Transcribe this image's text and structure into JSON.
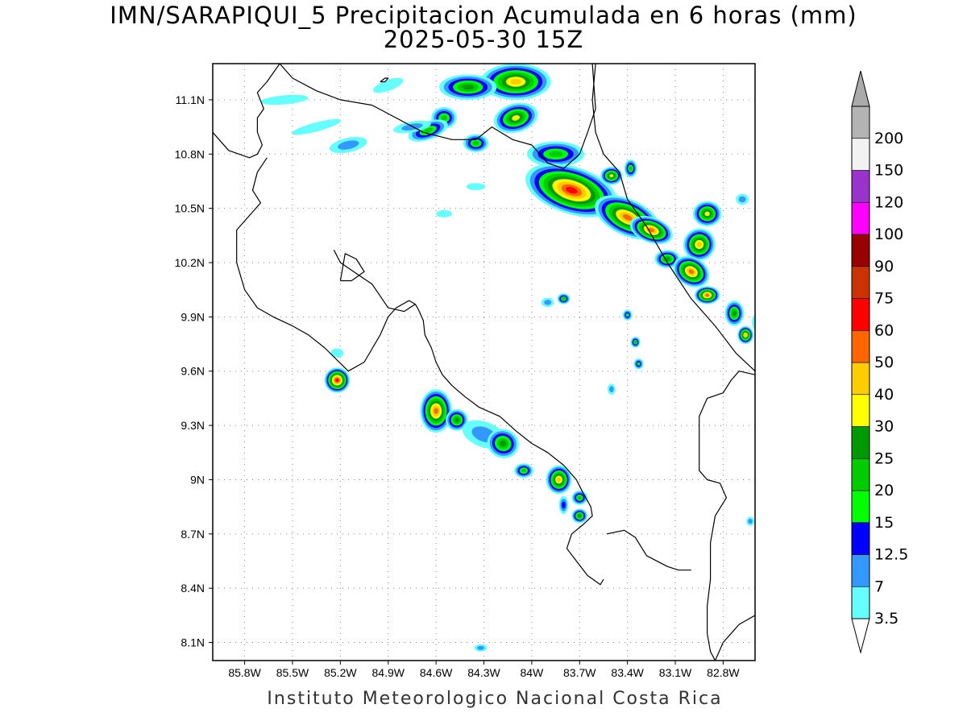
{
  "title": {
    "line1": "IMN/SARAPIQUI_5 Precipitacion Acumulada en 6 horas (mm)",
    "line2": "2025-05-30 15Z"
  },
  "footer": "Instituto Meteorologico Nacional Costa Rica",
  "map": {
    "lon_range": [
      -86.0,
      -82.6
    ],
    "lat_range": [
      8.0,
      11.3
    ],
    "lat_ticks": [
      {
        "value": 11.1,
        "label": "11.1N"
      },
      {
        "value": 10.8,
        "label": "10.8N"
      },
      {
        "value": 10.5,
        "label": "10.5N"
      },
      {
        "value": 10.2,
        "label": "10.2N"
      },
      {
        "value": 9.9,
        "label": "9.9N"
      },
      {
        "value": 9.6,
        "label": "9.6N"
      },
      {
        "value": 9.3,
        "label": "9.3N"
      },
      {
        "value": 9.0,
        "label": "9N"
      },
      {
        "value": 8.7,
        "label": "8.7N"
      },
      {
        "value": 8.4,
        "label": "8.4N"
      },
      {
        "value": 8.1,
        "label": "8.1N"
      }
    ],
    "lon_ticks": [
      {
        "value": -85.8,
        "label": "85.8W"
      },
      {
        "value": -85.5,
        "label": "85.5W"
      },
      {
        "value": -85.2,
        "label": "85.2W"
      },
      {
        "value": -84.9,
        "label": "84.9W"
      },
      {
        "value": -84.6,
        "label": "84.6W"
      },
      {
        "value": -84.3,
        "label": "84.3W"
      },
      {
        "value": -84.0,
        "label": "84W"
      },
      {
        "value": -83.7,
        "label": "83.7W"
      },
      {
        "value": -83.4,
        "label": "83.4W"
      },
      {
        "value": -83.1,
        "label": "83.1W"
      },
      {
        "value": -82.8,
        "label": "82.8W"
      }
    ],
    "grid": true,
    "grid_style": "dotted"
  },
  "colorbar": {
    "levels": [
      {
        "label": "3.5",
        "color": "#66ffff"
      },
      {
        "label": "7",
        "color": "#3399ff"
      },
      {
        "label": "12.5",
        "color": "#0000ff"
      },
      {
        "label": "15",
        "color": "#00ff00"
      },
      {
        "label": "20",
        "color": "#00cc00"
      },
      {
        "label": "25",
        "color": "#009900"
      },
      {
        "label": "30",
        "color": "#ffff00"
      },
      {
        "label": "40",
        "color": "#ffcc00"
      },
      {
        "label": "50",
        "color": "#ff6600"
      },
      {
        "label": "60",
        "color": "#ff0000"
      },
      {
        "label": "75",
        "color": "#cc3300"
      },
      {
        "label": "90",
        "color": "#990000"
      },
      {
        "label": "100",
        "color": "#ff00ff"
      },
      {
        "label": "120",
        "color": "#9933cc"
      },
      {
        "label": "150",
        "color": "#f2f2f2"
      },
      {
        "label": "200",
        "color": "#b3b3b3"
      }
    ],
    "below_color": "#ffffff",
    "above_color": "#aaaaaa",
    "units": "mm"
  },
  "precip_cells": [
    {
      "lon": -84.1,
      "lat": 11.2,
      "rx": 0.22,
      "ry": 0.1,
      "rot": 0,
      "max": 45
    },
    {
      "lon": -84.4,
      "lat": 11.17,
      "rx": 0.18,
      "ry": 0.07,
      "rot": 0,
      "max": 28
    },
    {
      "lon": -84.1,
      "lat": 11.0,
      "rx": 0.14,
      "ry": 0.08,
      "rot": -15,
      "max": 35
    },
    {
      "lon": -84.55,
      "lat": 11.0,
      "rx": 0.08,
      "ry": 0.06,
      "rot": 0,
      "max": 24
    },
    {
      "lon": -84.65,
      "lat": 10.93,
      "rx": 0.13,
      "ry": 0.05,
      "rot": -20,
      "max": 22
    },
    {
      "lon": -84.35,
      "lat": 10.86,
      "rx": 0.08,
      "ry": 0.05,
      "rot": 0,
      "max": 22
    },
    {
      "lon": -83.85,
      "lat": 10.8,
      "rx": 0.18,
      "ry": 0.07,
      "rot": 0,
      "max": 24
    },
    {
      "lon": -83.75,
      "lat": 10.6,
      "rx": 0.3,
      "ry": 0.13,
      "rot": 18,
      "max": 62
    },
    {
      "lon": -83.4,
      "lat": 10.45,
      "rx": 0.22,
      "ry": 0.1,
      "rot": 25,
      "max": 55
    },
    {
      "lon": -83.25,
      "lat": 10.38,
      "rx": 0.14,
      "ry": 0.07,
      "rot": 20,
      "max": 50
    },
    {
      "lon": -83.5,
      "lat": 10.68,
      "rx": 0.07,
      "ry": 0.05,
      "rot": 0,
      "max": 32
    },
    {
      "lon": -83.38,
      "lat": 10.72,
      "rx": 0.04,
      "ry": 0.05,
      "rot": 0,
      "max": 22
    },
    {
      "lon": -83.15,
      "lat": 10.22,
      "rx": 0.08,
      "ry": 0.05,
      "rot": 0,
      "max": 25
    },
    {
      "lon": -82.95,
      "lat": 10.3,
      "rx": 0.1,
      "ry": 0.09,
      "rot": 30,
      "max": 42
    },
    {
      "lon": -82.9,
      "lat": 10.47,
      "rx": 0.09,
      "ry": 0.07,
      "rot": 0,
      "max": 32
    },
    {
      "lon": -83.0,
      "lat": 10.15,
      "rx": 0.12,
      "ry": 0.08,
      "rot": 30,
      "max": 55
    },
    {
      "lon": -82.9,
      "lat": 10.02,
      "rx": 0.08,
      "ry": 0.05,
      "rot": 0,
      "max": 52
    },
    {
      "lon": -82.73,
      "lat": 9.92,
      "rx": 0.06,
      "ry": 0.07,
      "rot": 0,
      "max": 25
    },
    {
      "lon": -82.66,
      "lat": 9.8,
      "rx": 0.05,
      "ry": 0.05,
      "rot": 0,
      "max": 40
    },
    {
      "lon": -82.68,
      "lat": 10.55,
      "rx": 0.04,
      "ry": 0.03,
      "rot": 0,
      "max": 8
    },
    {
      "lon": -84.75,
      "lat": 10.95,
      "rx": 0.12,
      "ry": 0.03,
      "rot": -10,
      "max": 8
    },
    {
      "lon": -85.15,
      "lat": 10.85,
      "rx": 0.12,
      "ry": 0.04,
      "rot": -12,
      "max": 12
    },
    {
      "lon": -85.35,
      "lat": 10.95,
      "rx": 0.16,
      "ry": 0.025,
      "rot": -15,
      "max": 6
    },
    {
      "lon": -85.55,
      "lat": 11.1,
      "rx": 0.15,
      "ry": 0.025,
      "rot": -5,
      "max": 6
    },
    {
      "lon": -84.9,
      "lat": 11.18,
      "rx": 0.1,
      "ry": 0.03,
      "rot": -20,
      "max": 6
    },
    {
      "lon": -84.35,
      "lat": 10.62,
      "rx": 0.06,
      "ry": 0.02,
      "rot": 0,
      "max": 5
    },
    {
      "lon": -84.55,
      "lat": 10.47,
      "rx": 0.05,
      "ry": 0.02,
      "rot": 0,
      "max": 5
    },
    {
      "lon": -85.22,
      "lat": 9.55,
      "rx": 0.08,
      "ry": 0.07,
      "rot": 0,
      "max": 62
    },
    {
      "lon": -85.22,
      "lat": 9.7,
      "rx": 0.04,
      "ry": 0.025,
      "rot": 0,
      "max": 6
    },
    {
      "lon": -84.6,
      "lat": 9.38,
      "rx": 0.1,
      "ry": 0.12,
      "rot": 0,
      "max": 58
    },
    {
      "lon": -84.47,
      "lat": 9.33,
      "rx": 0.07,
      "ry": 0.06,
      "rot": 0,
      "max": 28
    },
    {
      "lon": -84.3,
      "lat": 9.25,
      "rx": 0.14,
      "ry": 0.07,
      "rot": 20,
      "max": 12
    },
    {
      "lon": -84.18,
      "lat": 9.2,
      "rx": 0.1,
      "ry": 0.08,
      "rot": 20,
      "max": 28
    },
    {
      "lon": -84.05,
      "lat": 9.05,
      "rx": 0.06,
      "ry": 0.04,
      "rot": 0,
      "max": 22
    },
    {
      "lon": -83.83,
      "lat": 9.0,
      "rx": 0.08,
      "ry": 0.08,
      "rot": 0,
      "max": 42
    },
    {
      "lon": -83.7,
      "lat": 8.9,
      "rx": 0.05,
      "ry": 0.04,
      "rot": 0,
      "max": 22
    },
    {
      "lon": -83.7,
      "lat": 8.8,
      "rx": 0.05,
      "ry": 0.04,
      "rot": 0,
      "max": 25
    },
    {
      "lon": -83.8,
      "lat": 8.86,
      "rx": 0.03,
      "ry": 0.05,
      "rot": 0,
      "max": 14
    },
    {
      "lon": -83.8,
      "lat": 10.0,
      "rx": 0.04,
      "ry": 0.03,
      "rot": 0,
      "max": 20
    },
    {
      "lon": -83.9,
      "lat": 9.98,
      "rx": 0.04,
      "ry": 0.025,
      "rot": 0,
      "max": 12
    },
    {
      "lon": -83.4,
      "lat": 9.91,
      "rx": 0.03,
      "ry": 0.03,
      "rot": 0,
      "max": 18
    },
    {
      "lon": -83.35,
      "lat": 9.76,
      "rx": 0.03,
      "ry": 0.03,
      "rot": 0,
      "max": 20
    },
    {
      "lon": -83.33,
      "lat": 9.64,
      "rx": 0.03,
      "ry": 0.03,
      "rot": 0,
      "max": 18
    },
    {
      "lon": -83.5,
      "lat": 9.5,
      "rx": 0.025,
      "ry": 0.03,
      "rot": 0,
      "max": 12
    },
    {
      "lon": -82.58,
      "lat": 9.87,
      "rx": 0.04,
      "ry": 0.05,
      "rot": 0,
      "max": 12
    },
    {
      "lon": -84.32,
      "lat": 8.07,
      "rx": 0.04,
      "ry": 0.02,
      "rot": 0,
      "max": 8
    },
    {
      "lon": -82.63,
      "lat": 8.77,
      "rx": 0.025,
      "ry": 0.025,
      "rot": 0,
      "max": 8
    }
  ],
  "coastlines": [
    [
      [
        -86.0,
        10.92
      ],
      [
        -85.9,
        10.82
      ],
      [
        -85.77,
        10.78
      ],
      [
        -85.72,
        10.8
      ],
      [
        -85.69,
        10.85
      ],
      [
        -85.72,
        10.92
      ],
      [
        -85.72,
        11.0
      ],
      [
        -85.68,
        11.05
      ],
      [
        -85.72,
        11.14
      ],
      [
        -85.66,
        11.2
      ],
      [
        -85.58,
        11.3
      ]
    ],
    [
      [
        -85.66,
        10.78
      ],
      [
        -85.72,
        10.7
      ],
      [
        -85.75,
        10.6
      ],
      [
        -85.7,
        10.53
      ],
      [
        -85.78,
        10.45
      ],
      [
        -85.85,
        10.38
      ],
      [
        -85.85,
        10.2
      ],
      [
        -85.8,
        10.05
      ],
      [
        -85.72,
        9.95
      ],
      [
        -85.62,
        9.9
      ],
      [
        -85.5,
        9.85
      ],
      [
        -85.4,
        9.8
      ],
      [
        -85.3,
        9.73
      ],
      [
        -85.15,
        9.6
      ],
      [
        -85.05,
        9.65
      ],
      [
        -84.95,
        9.8
      ],
      [
        -84.9,
        9.9
      ],
      [
        -84.85,
        9.95
      ],
      [
        -84.77,
        9.99
      ],
      [
        -84.73,
        9.97
      ],
      [
        -84.71,
        9.94
      ],
      [
        -84.68,
        9.88
      ],
      [
        -84.67,
        9.8
      ],
      [
        -84.63,
        9.73
      ],
      [
        -84.6,
        9.65
      ],
      [
        -84.56,
        9.58
      ],
      [
        -84.5,
        9.52
      ],
      [
        -84.42,
        9.46
      ],
      [
        -84.33,
        9.4
      ],
      [
        -84.2,
        9.35
      ],
      [
        -84.1,
        9.27
      ],
      [
        -84.0,
        9.2
      ],
      [
        -83.9,
        9.15
      ],
      [
        -83.8,
        9.08
      ],
      [
        -83.72,
        9.0
      ],
      [
        -83.68,
        8.93
      ],
      [
        -83.63,
        8.85
      ],
      [
        -83.62,
        8.8
      ],
      [
        -83.68,
        8.75
      ],
      [
        -83.75,
        8.7
      ],
      [
        -83.78,
        8.62
      ],
      [
        -83.72,
        8.55
      ],
      [
        -83.65,
        8.47
      ],
      [
        -83.57,
        8.42
      ],
      [
        -83.55,
        8.45
      ]
    ],
    [
      [
        -85.2,
        10.1
      ],
      [
        -85.13,
        10.1
      ],
      [
        -85.05,
        10.15
      ],
      [
        -85.1,
        10.22
      ],
      [
        -85.17,
        10.25
      ],
      [
        -85.2,
        10.1
      ]
    ]
  ],
  "gulf_line": [
    [
      -85.24,
      10.27
    ],
    [
      -85.2,
      10.2
    ],
    [
      -85.0,
      10.08
    ],
    [
      -84.9,
      9.95
    ],
    [
      -84.8,
      9.93
    ],
    [
      -84.73,
      9.97
    ]
  ],
  "border_nic": [
    [
      -85.58,
      11.3
    ],
    [
      -85.5,
      11.22
    ],
    [
      -85.35,
      11.15
    ],
    [
      -85.2,
      11.1
    ],
    [
      -85.0,
      11.07
    ],
    [
      -84.85,
      11.0
    ],
    [
      -84.68,
      10.92
    ],
    [
      -84.5,
      10.88
    ],
    [
      -84.35,
      10.88
    ],
    [
      -84.25,
      10.95
    ],
    [
      -84.12,
      10.88
    ],
    [
      -84.0,
      10.85
    ],
    [
      -83.9,
      10.75
    ],
    [
      -83.8,
      10.72
    ],
    [
      -83.7,
      10.8
    ],
    [
      -83.65,
      10.92
    ],
    [
      -83.6,
      11.05
    ],
    [
      -83.62,
      11.3
    ]
  ],
  "caribbean_coast": [
    [
      -83.6,
      11.3
    ],
    [
      -83.62,
      11.1
    ],
    [
      -83.6,
      10.92
    ],
    [
      -83.55,
      10.8
    ],
    [
      -83.45,
      10.7
    ],
    [
      -83.4,
      10.55
    ],
    [
      -83.28,
      10.4
    ],
    [
      -83.15,
      10.2
    ],
    [
      -83.0,
      10.0
    ],
    [
      -82.85,
      9.85
    ],
    [
      -82.72,
      9.7
    ],
    [
      -82.6,
      9.6
    ]
  ],
  "panama_coast": [
    [
      -82.6,
      9.58
    ],
    [
      -82.7,
      9.6
    ],
    [
      -82.75,
      9.55
    ],
    [
      -82.8,
      9.48
    ],
    [
      -82.9,
      9.45
    ],
    [
      -82.95,
      9.35
    ],
    [
      -82.95,
      9.1
    ],
    [
      -82.95,
      9.05
    ],
    [
      -82.9,
      9.0
    ],
    [
      -82.82,
      8.98
    ],
    [
      -82.78,
      8.9
    ],
    [
      -82.85,
      8.8
    ],
    [
      -82.88,
      8.65
    ],
    [
      -82.88,
      8.45
    ],
    [
      -82.9,
      8.3
    ],
    [
      -82.9,
      8.15
    ],
    [
      -82.88,
      8.05
    ],
    [
      -82.85,
      8.0
    ]
  ],
  "panama_pacific": [
    [
      -82.6,
      8.25
    ],
    [
      -82.7,
      8.2
    ],
    [
      -82.75,
      8.15
    ],
    [
      -82.8,
      8.1
    ],
    [
      -82.85,
      8.0
    ]
  ],
  "border_pan": [
    [
      -83.53,
      8.7
    ],
    [
      -83.42,
      8.72
    ],
    [
      -83.35,
      8.68
    ],
    [
      -83.28,
      8.58
    ],
    [
      -83.15,
      8.52
    ],
    [
      -83.08,
      8.5
    ],
    [
      -83.0,
      8.5
    ]
  ],
  "island": [
    [
      -84.95,
      11.2
    ],
    [
      -84.92,
      11.2
    ],
    [
      -84.9,
      11.22
    ],
    [
      -84.92,
      11.22
    ],
    [
      -84.95,
      11.2
    ]
  ]
}
